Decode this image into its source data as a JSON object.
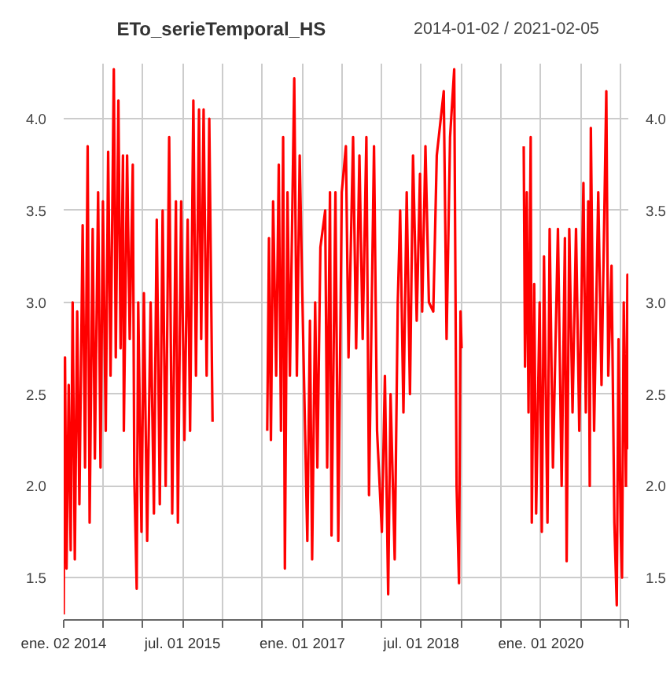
{
  "chart_data": {
    "type": "line",
    "title": "ETo_serieTemporal_HS",
    "subtitle": "2014-01-02 / 2021-02-05",
    "x": [
      "2014-01-02",
      "2014-01-08",
      "2014-01-15",
      "2014-01-25",
      "2014-02-03",
      "2014-02-12",
      "2014-02-22",
      "2014-03-05",
      "2014-03-15",
      "2014-03-30",
      "2014-04-10",
      "2014-04-22",
      "2014-05-01",
      "2014-05-15",
      "2014-05-25",
      "2014-06-09",
      "2014-06-20",
      "2014-07-01",
      "2014-07-14",
      "2014-07-25",
      "2014-08-05",
      "2014-08-20",
      "2014-08-29",
      "2014-09-10",
      "2014-09-20",
      "2014-10-01",
      "2014-10-05",
      "2014-10-20",
      "2014-11-01",
      "2014-11-15",
      "2014-11-22",
      "2014-12-03",
      "2014-12-10",
      "2014-12-25",
      "2015-01-05",
      "2015-01-20",
      "2015-02-05",
      "2015-02-20",
      "2015-03-05",
      "2015-03-19",
      "2015-04-01",
      "2015-04-15",
      "2015-05-01",
      "2015-05-15",
      "2015-06-01",
      "2015-06-10",
      "2015-06-25",
      "2015-07-10",
      "2015-07-25",
      "2015-08-05",
      "2015-08-20",
      "2015-09-01",
      "2015-09-15",
      "2015-09-25",
      "2015-10-06",
      "2015-10-20",
      "2015-11-01",
      "2015-11-16",
      "2016-03-01",
      "2016-07-24",
      "2016-08-01",
      "2016-08-10",
      "2016-08-20",
      "2016-09-03",
      "2016-09-15",
      "2016-09-25",
      "2016-10-05",
      "2016-10-13",
      "2016-10-25",
      "2016-11-05",
      "2016-11-25",
      "2016-12-07",
      "2016-12-20",
      "2017-01-05",
      "2017-01-24",
      "2017-02-05",
      "2017-02-15",
      "2017-03-01",
      "2017-03-11",
      "2017-03-25",
      "2017-04-16",
      "2017-04-25",
      "2017-05-08",
      "2017-05-15",
      "2017-06-02",
      "2017-06-15",
      "2017-07-01",
      "2017-07-20",
      "2017-08-01",
      "2017-08-22",
      "2017-09-05",
      "2017-09-20",
      "2017-10-05",
      "2017-10-22",
      "2017-11-03",
      "2017-11-26",
      "2017-12-10",
      "2018-01-01",
      "2018-01-15",
      "2018-01-30",
      "2018-02-10",
      "2018-03-01",
      "2018-03-15",
      "2018-03-26",
      "2018-04-10",
      "2018-04-25",
      "2018-05-10",
      "2018-05-24",
      "2018-06-10",
      "2018-06-25",
      "2018-07-05",
      "2018-07-20",
      "2018-08-05",
      "2018-08-25",
      "2018-09-10",
      "2018-10-12",
      "2018-10-25",
      "2018-11-10",
      "2018-11-29",
      "2018-12-10",
      "2018-12-21",
      "2018-12-28",
      "2019-01-02",
      "2019-05-01",
      "2019-10-14",
      "2019-10-20",
      "2019-10-28",
      "2019-11-05",
      "2019-11-15",
      "2019-11-20",
      "2019-12-01",
      "2019-12-10",
      "2019-12-26",
      "2020-01-05",
      "2020-01-15",
      "2020-01-31",
      "2020-02-10",
      "2020-02-25",
      "2020-03-19",
      "2020-04-05",
      "2020-04-20",
      "2020-04-28",
      "2020-05-10",
      "2020-05-25",
      "2020-06-10",
      "2020-06-25",
      "2020-07-14",
      "2020-07-25",
      "2020-08-05",
      "2020-08-12",
      "2020-08-17",
      "2020-09-01",
      "2020-09-20",
      "2020-10-05",
      "2020-10-27",
      "2020-11-05",
      "2020-11-20",
      "2020-12-03",
      "2020-12-14",
      "2020-12-22",
      "2021-01-01",
      "2021-01-07",
      "2021-01-15",
      "2021-01-25",
      "2021-02-01",
      "2021-02-05"
    ],
    "series": [
      {
        "color": "#ff0000",
        "values": [
          1.3,
          2.7,
          1.55,
          2.55,
          1.65,
          3.0,
          1.6,
          2.95,
          1.9,
          3.42,
          2.1,
          3.85,
          1.8,
          3.4,
          2.15,
          3.6,
          2.1,
          3.55,
          2.3,
          3.82,
          2.6,
          4.27,
          2.7,
          4.1,
          2.75,
          3.8,
          2.3,
          3.8,
          2.8,
          3.75,
          2.05,
          1.44,
          3.0,
          1.75,
          3.05,
          1.7,
          3.0,
          1.85,
          3.45,
          1.9,
          3.5,
          2.0,
          3.9,
          1.85,
          3.55,
          1.8,
          3.55,
          2.25,
          3.45,
          2.3,
          4.1,
          2.6,
          4.05,
          2.8,
          4.05,
          2.6,
          4.0,
          2.35,
          null,
          2.3,
          3.35,
          2.25,
          3.55,
          2.6,
          3.75,
          2.3,
          3.9,
          1.55,
          3.6,
          2.6,
          4.22,
          2.6,
          3.8,
          2.8,
          1.7,
          2.9,
          1.6,
          3.0,
          2.1,
          3.3,
          3.5,
          2.1,
          3.6,
          1.73,
          3.6,
          1.7,
          3.6,
          3.85,
          2.7,
          3.9,
          2.75,
          3.8,
          2.8,
          3.9,
          1.95,
          3.85,
          2.3,
          1.75,
          2.6,
          1.41,
          2.5,
          1.6,
          3.0,
          3.5,
          2.4,
          3.6,
          2.5,
          3.8,
          2.9,
          3.7,
          2.95,
          3.85,
          3.0,
          2.95,
          3.8,
          4.15,
          2.8,
          3.9,
          4.27,
          2.0,
          1.47,
          2.95,
          2.75,
          null,
          3.85,
          2.65,
          3.6,
          2.4,
          3.9,
          1.8,
          3.1,
          1.85,
          3.0,
          1.75,
          3.25,
          1.8,
          3.4,
          2.1,
          3.4,
          2.0,
          3.35,
          1.59,
          3.4,
          2.4,
          3.4,
          2.3,
          3.65,
          2.4,
          3.55,
          2.0,
          3.95,
          2.3,
          3.6,
          2.55,
          4.15,
          2.6,
          3.2,
          1.8,
          1.35,
          2.8,
          1.75,
          1.5,
          3.0,
          2.0,
          3.15,
          2.2
        ]
      }
    ],
    "xlim": [
      "2014-01-02",
      "2021-02-05"
    ],
    "xticks": [
      {
        "value": "2014-01-02",
        "label": "ene. 02 2014"
      },
      {
        "value": "2014-07-01",
        "label": null
      },
      {
        "value": "2015-01-01",
        "label": null
      },
      {
        "value": "2015-07-01",
        "label": "jul. 01 2015"
      },
      {
        "value": "2016-01-01",
        "label": null
      },
      {
        "value": "2016-07-01",
        "label": null
      },
      {
        "value": "2017-01-01",
        "label": "ene. 01 2017"
      },
      {
        "value": "2017-07-01",
        "label": null
      },
      {
        "value": "2018-01-01",
        "label": null
      },
      {
        "value": "2018-07-01",
        "label": "jul. 01 2018"
      },
      {
        "value": "2019-01-01",
        "label": null
      },
      {
        "value": "2019-07-01",
        "label": null
      },
      {
        "value": "2020-01-01",
        "label": "ene. 01 2020"
      },
      {
        "value": "2020-07-01",
        "label": null
      },
      {
        "value": "2021-01-01",
        "label": null
      },
      {
        "value": "2021-02-05",
        "label": null
      }
    ],
    "ylim": [
      1.27,
      4.3
    ],
    "yticks": [
      {
        "value": 1.5,
        "label": "1.5"
      },
      {
        "value": 2.0,
        "label": "2.0"
      },
      {
        "value": 2.5,
        "label": "2.5"
      },
      {
        "value": 3.0,
        "label": "3.0"
      },
      {
        "value": 3.5,
        "label": "3.5"
      },
      {
        "value": 4.0,
        "label": "4.0"
      }
    ],
    "y2lim": [
      1.27,
      4.3
    ],
    "y2ticks": [
      {
        "value": 1.5,
        "label": "1.5"
      },
      {
        "value": 2.0,
        "label": "2.0"
      },
      {
        "value": 2.5,
        "label": "2.5"
      },
      {
        "value": 3.0,
        "label": "3.0"
      },
      {
        "value": 3.5,
        "label": "3.5"
      },
      {
        "value": 4.0,
        "label": "4.0"
      }
    ],
    "grid": true,
    "line_style": "solid"
  }
}
